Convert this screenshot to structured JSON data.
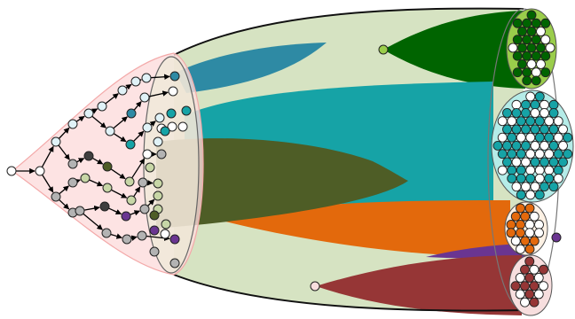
{
  "palette": {
    "tree_region": "#fcdcdc",
    "tree_region_stroke": "#f3a9a9",
    "outer_body": "#d6e3c2",
    "outer_stroke": "#111111",
    "node_white": "#ffffff",
    "node_pale_blue": "#e0f2f7",
    "node_gray": "#b3b3b3",
    "node_dark": "#3f3f3f",
    "node_olive": "#4e5d26",
    "node_pale_olive": "#c7d6a6",
    "node_teal": "#16a3a6",
    "node_blue": "#2e8aa4",
    "node_purple": "#6a3591",
    "node_green": "#006400",
    "node_light_green": "#9acd4b",
    "node_orange": "#e3690c",
    "node_maroon": "#963636",
    "node_pink": "#f7dede"
  },
  "lineages": [
    {
      "name": "blue",
      "color": "#2e8aa4"
    },
    {
      "name": "green",
      "color": "#006400"
    },
    {
      "name": "teal",
      "color": "#16a3a6"
    },
    {
      "name": "olive",
      "color": "#4e5d26"
    },
    {
      "name": "orange",
      "color": "#e3690c"
    },
    {
      "name": "purple",
      "color": "#6a3591"
    },
    {
      "name": "maroon",
      "color": "#963636"
    }
  ],
  "clusters": [
    {
      "name": "green-cluster",
      "fill": "#9acd4b",
      "node_colors": [
        "#006400",
        "#ffffff"
      ]
    },
    {
      "name": "teal-cluster",
      "fill": "#b5ece8",
      "node_colors": [
        "#16a3a6",
        "#ffffff"
      ]
    },
    {
      "name": "orange-cluster",
      "fill": "#fdf1e4",
      "node_colors": [
        "#e3690c",
        "#ffffff"
      ]
    },
    {
      "name": "maroon-cluster",
      "fill": "#f7dede",
      "node_colors": [
        "#963636",
        "#ffffff"
      ]
    }
  ]
}
